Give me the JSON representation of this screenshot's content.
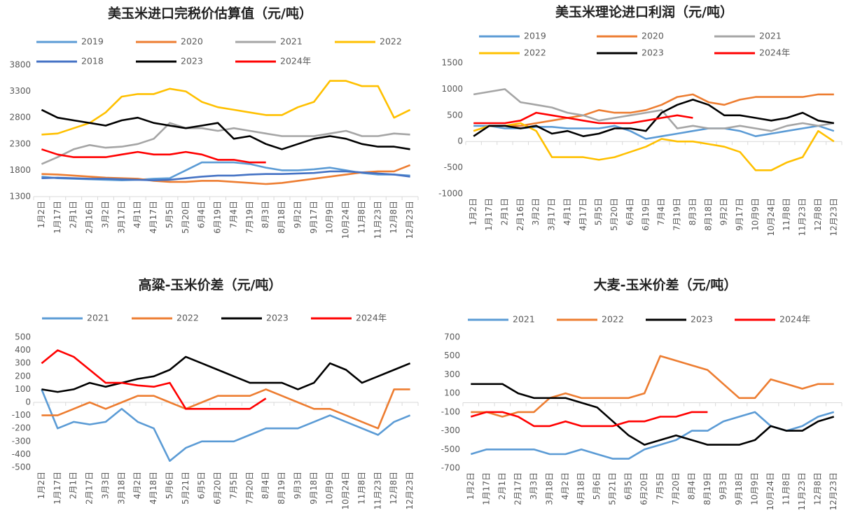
{
  "chart_data": [
    {
      "type": "line",
      "title": "美玉米进口完税价估算值（元/吨）",
      "categories": [
        "1月2日",
        "1月17日",
        "2月1日",
        "2月16日",
        "3月2日",
        "3月17日",
        "4月1日",
        "4月17日",
        "5月5日",
        "5月20日",
        "6月4日",
        "6月19日",
        "7月4日",
        "7月19日",
        "8月3日",
        "8月18日",
        "9月2日",
        "9月17日",
        "10月9日",
        "10月24日",
        "11月8日",
        "11月23日",
        "12月8日",
        "12月23日"
      ],
      "ylim": [
        1300,
        3800
      ],
      "yticks": [
        1300,
        1800,
        2300,
        2800,
        3300,
        3800
      ],
      "series": [
        {
          "name": "2019",
          "color": "#5b9bd5",
          "values": [
            1680,
            1650,
            1640,
            1630,
            1620,
            1610,
            1620,
            1640,
            1650,
            1800,
            1950,
            1950,
            1950,
            1920,
            1850,
            1800,
            1800,
            1820,
            1850,
            1800,
            1750,
            1720,
            1720,
            1700
          ]
        },
        {
          "name": "2020",
          "color": "#ed7d31",
          "values": [
            1730,
            1720,
            1700,
            1680,
            1660,
            1650,
            1640,
            1600,
            1580,
            1580,
            1600,
            1600,
            1580,
            1560,
            1540,
            1560,
            1600,
            1640,
            1680,
            1720,
            1760,
            1780,
            1780,
            1900
          ]
        },
        {
          "name": "2021",
          "color": "#a5a5a5",
          "values": [
            1920,
            2050,
            2200,
            2280,
            2230,
            2250,
            2300,
            2400,
            2700,
            2600,
            2600,
            2550,
            2600,
            2550,
            2500,
            2450,
            2450,
            2450,
            2500,
            2550,
            2450,
            2450,
            2500,
            2480
          ]
        },
        {
          "name": "2022",
          "color": "#ffc000",
          "values": [
            2480,
            2500,
            2600,
            2700,
            2900,
            3200,
            3250,
            3250,
            3350,
            3300,
            3100,
            3000,
            2950,
            2900,
            2850,
            2850,
            3000,
            3100,
            3500,
            3500,
            3400,
            3400,
            2800,
            2950
          ]
        },
        {
          "name": "2018",
          "color": "#4472c4",
          "values": [
            1650,
            1660,
            1650,
            1640,
            1640,
            1630,
            1620,
            1610,
            1620,
            1650,
            1680,
            1700,
            1700,
            1720,
            1730,
            1730,
            1740,
            1750,
            1780,
            1780,
            1760,
            1740,
            1720,
            1680
          ]
        },
        {
          "name": "2023",
          "color": "#000000",
          "values": [
            2950,
            2800,
            2750,
            2700,
            2650,
            2750,
            2800,
            2700,
            2650,
            2600,
            2650,
            2700,
            2400,
            2450,
            2300,
            2200,
            2300,
            2400,
            2450,
            2400,
            2300,
            2250,
            2250,
            2200
          ]
        },
        {
          "name": "2024年",
          "color": "#ff0000",
          "values": [
            2200,
            2100,
            2050,
            2050,
            2050,
            2100,
            2150,
            2100,
            2100,
            2150,
            2100,
            2000,
            2000,
            1950,
            1950,
            null,
            null,
            null,
            null,
            null,
            null,
            null,
            null,
            null
          ]
        }
      ]
    },
    {
      "type": "line",
      "title": "美玉米理论进口利润（元/吨）",
      "categories": [
        "1月2日",
        "1月17日",
        "2月1日",
        "2月16日",
        "3月2日",
        "3月17日",
        "4月1日",
        "4月17日",
        "5月5日",
        "5月20日",
        "6月4日",
        "6月19日",
        "7月4日",
        "7月19日",
        "8月3日",
        "8月18日",
        "9月2日",
        "9月17日",
        "10月9日",
        "10月24日",
        "11月8日",
        "11月23日",
        "12月8日",
        "12月23日"
      ],
      "ylim": [
        -1000,
        1500
      ],
      "yticks": [
        -1000,
        -500,
        0,
        500,
        1000,
        1500
      ],
      "series": [
        {
          "name": "2019",
          "color": "#5b9bd5",
          "values": [
            300,
            300,
            250,
            250,
            280,
            280,
            250,
            250,
            250,
            300,
            200,
            50,
            100,
            150,
            200,
            250,
            250,
            200,
            100,
            150,
            200,
            250,
            300,
            200
          ]
        },
        {
          "name": "2020",
          "color": "#ed7d31",
          "values": [
            200,
            300,
            300,
            300,
            350,
            400,
            450,
            500,
            600,
            550,
            550,
            600,
            700,
            850,
            900,
            750,
            700,
            800,
            850,
            850,
            850,
            850,
            900,
            900
          ]
        },
        {
          "name": "2021",
          "color": "#a5a5a5",
          "values": [
            900,
            950,
            1000,
            750,
            700,
            650,
            550,
            500,
            400,
            450,
            500,
            550,
            600,
            250,
            300,
            250,
            250,
            300,
            250,
            200,
            300,
            350,
            300,
            350
          ]
        },
        {
          "name": "2022",
          "color": "#ffc000",
          "values": [
            200,
            300,
            300,
            350,
            200,
            -300,
            -300,
            -300,
            -350,
            -300,
            -200,
            -100,
            50,
            0,
            0,
            -50,
            -100,
            -200,
            -550,
            -550,
            -400,
            -300,
            200,
            0
          ]
        },
        {
          "name": "2023",
          "color": "#000000",
          "values": [
            100,
            300,
            300,
            250,
            300,
            150,
            200,
            100,
            150,
            250,
            250,
            200,
            550,
            700,
            800,
            700,
            500,
            500,
            450,
            400,
            450,
            550,
            400,
            350
          ]
        },
        {
          "name": "2024年",
          "color": "#ff0000",
          "values": [
            350,
            350,
            350,
            400,
            550,
            500,
            450,
            400,
            350,
            350,
            350,
            400,
            450,
            500,
            450,
            null,
            null,
            null,
            null,
            null,
            null,
            null,
            null,
            null
          ]
        }
      ]
    },
    {
      "type": "line",
      "title": "高粱-玉米价差（元/吨）",
      "categories": [
        "1月2日",
        "1月17日",
        "2月1日",
        "2月17日",
        "3月3日",
        "3月18日",
        "4月2日",
        "4月18日",
        "5月6日",
        "5月21日",
        "6月5日",
        "6月20日",
        "7月5日",
        "7月20日",
        "8月4日",
        "8月19日",
        "9月3日",
        "9月18日",
        "10月9日",
        "10月24日",
        "11月8日",
        "11月23日",
        "12月8日",
        "12月23日"
      ],
      "ylim": [
        -500,
        500
      ],
      "yticks": [
        -500,
        -400,
        -300,
        -200,
        -100,
        0,
        100,
        200,
        300,
        400,
        500
      ],
      "series": [
        {
          "name": "2021",
          "color": "#5b9bd5",
          "values": [
            100,
            -200,
            -150,
            -170,
            -150,
            -50,
            -150,
            -200,
            -450,
            -350,
            -300,
            -300,
            -300,
            -250,
            -200,
            -200,
            -200,
            -150,
            -100,
            -150,
            -200,
            -250,
            -150,
            -100
          ]
        },
        {
          "name": "2022",
          "color": "#ed7d31",
          "values": [
            -100,
            -100,
            -50,
            0,
            -50,
            0,
            50,
            50,
            0,
            -50,
            0,
            50,
            50,
            50,
            100,
            50,
            0,
            -50,
            -50,
            -100,
            -150,
            -200,
            100,
            100
          ]
        },
        {
          "name": "2023",
          "color": "#000000",
          "values": [
            100,
            80,
            100,
            150,
            120,
            150,
            180,
            200,
            250,
            350,
            300,
            250,
            200,
            150,
            150,
            150,
            100,
            150,
            300,
            250,
            150,
            200,
            250,
            300
          ]
        },
        {
          "name": "2024年",
          "color": "#ff0000",
          "values": [
            300,
            400,
            350,
            250,
            150,
            150,
            130,
            120,
            150,
            -50,
            -50,
            -50,
            -50,
            -50,
            30,
            null,
            null,
            null,
            null,
            null,
            null,
            null,
            null,
            null
          ]
        }
      ]
    },
    {
      "type": "line",
      "title": "大麦-玉米价差（元/吨）",
      "categories": [
        "1月2日",
        "1月17日",
        "2月1日",
        "2月17日",
        "3月3日",
        "3月18日",
        "4月2日",
        "4月18日",
        "5月6日",
        "5月21日",
        "6月5日",
        "6月20日",
        "7月5日",
        "7月20日",
        "8月4日",
        "8月19日",
        "9月3日",
        "9月18日",
        "10月9日",
        "10月24日",
        "11月8日",
        "11月23日",
        "12月8日",
        "12月23日"
      ],
      "ylim": [
        -700,
        700
      ],
      "yticks": [
        -700,
        -500,
        -300,
        -100,
        100,
        300,
        500,
        700
      ],
      "series": [
        {
          "name": "2021",
          "color": "#5b9bd5",
          "values": [
            -550,
            -500,
            -500,
            -500,
            -500,
            -550,
            -550,
            -500,
            -550,
            -600,
            -600,
            -500,
            -450,
            -400,
            -300,
            -300,
            -200,
            -150,
            -100,
            -250,
            -300,
            -250,
            -150,
            -100
          ]
        },
        {
          "name": "2022",
          "color": "#ed7d31",
          "values": [
            -100,
            -100,
            -150,
            -100,
            -100,
            50,
            100,
            50,
            50,
            50,
            50,
            100,
            500,
            450,
            400,
            350,
            200,
            50,
            50,
            250,
            200,
            150,
            200,
            200
          ]
        },
        {
          "name": "2023",
          "color": "#000000",
          "values": [
            200,
            200,
            200,
            100,
            50,
            50,
            50,
            0,
            -50,
            -200,
            -350,
            -450,
            -400,
            -350,
            -400,
            -450,
            -450,
            -450,
            -400,
            -250,
            -300,
            -300,
            -200,
            -150
          ]
        },
        {
          "name": "2024年",
          "color": "#ff0000",
          "values": [
            -150,
            -100,
            -100,
            -150,
            -250,
            -250,
            -200,
            -250,
            -250,
            -250,
            -200,
            -200,
            -150,
            -150,
            -100,
            -100,
            null,
            null,
            null,
            null,
            null,
            null,
            null,
            null
          ]
        }
      ]
    }
  ]
}
